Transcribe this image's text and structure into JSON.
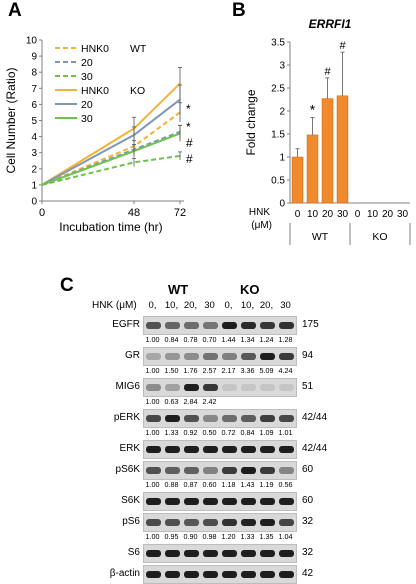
{
  "panels": {
    "a": "A",
    "b": "B",
    "c": "C"
  },
  "panel_a": {
    "chart_data": {
      "type": "line",
      "xlabel": "Incubation time (hr)",
      "ylabel": "Cell Number (Ratio)",
      "x": [
        0,
        48,
        72
      ],
      "xticks": [
        "0",
        "48",
        "72"
      ],
      "yticks": [
        "0",
        "1",
        "2",
        "3",
        "4",
        "5",
        "6",
        "7",
        "8",
        "9",
        "10"
      ],
      "ylim": [
        0,
        10
      ],
      "legend_groups": [
        "WT",
        "KO"
      ],
      "series": [
        {
          "name": "HNK0",
          "group": "WT",
          "color": "#f5b335",
          "dashed": true,
          "values": [
            1,
            3.4,
            5.5
          ]
        },
        {
          "name": "20",
          "group": "WT",
          "color": "#7f96b8",
          "dashed": true,
          "values": [
            1,
            3.2,
            4.3
          ]
        },
        {
          "name": "30",
          "group": "WT",
          "color": "#6cc24a",
          "dashed": true,
          "values": [
            1,
            2.4,
            2.8
          ]
        },
        {
          "name": "HNK0",
          "group": "KO",
          "color": "#f5b335",
          "dashed": false,
          "values": [
            1,
            4.5,
            7.3
          ]
        },
        {
          "name": "20",
          "group": "KO",
          "color": "#7f96b8",
          "dashed": false,
          "values": [
            1,
            4.1,
            6.3
          ]
        },
        {
          "name": "30",
          "group": "KO",
          "color": "#6cc24a",
          "dashed": false,
          "values": [
            1,
            3.1,
            4.2
          ]
        }
      ],
      "annotations": [
        "*",
        "*",
        "#",
        "#"
      ]
    }
  },
  "panel_b": {
    "chart_data": {
      "type": "bar",
      "title": "ERRFI1",
      "ylabel": "Fold change",
      "xlabel": "HNK\n(μM)",
      "xlabel_line1": "HNK",
      "xlabel_line2": "(μM)",
      "categories": [
        "0",
        "10",
        "20",
        "30",
        "0",
        "10",
        "20",
        "30"
      ],
      "groups": [
        "WT",
        "KO"
      ],
      "values": [
        1.0,
        1.48,
        2.27,
        2.33,
        0,
        0,
        0,
        0
      ],
      "errors": [
        0.18,
        0.38,
        0.45,
        0.95,
        0,
        0,
        0,
        0
      ],
      "markers": [
        "",
        "*",
        "#",
        "#",
        "",
        "",
        "",
        ""
      ],
      "yticks": [
        "0",
        "0.5",
        "1",
        "1.5",
        "2",
        "2.5",
        "3",
        "3.5"
      ],
      "ylim": [
        0,
        3.5
      ],
      "bar_color": "#f08a2c"
    }
  },
  "panel_c": {
    "groups": [
      "WT",
      "KO"
    ],
    "hnk_label": "HNK (μM)",
    "doses": [
      "0,",
      "10,",
      "20,",
      "30",
      "0,",
      "10,",
      "20,",
      "30"
    ],
    "rows": [
      {
        "name": "EGFR",
        "kda": "175",
        "vals": [
          "1.00",
          "0.84",
          "0.78",
          "0.70",
          "1.44",
          "1.34",
          "1.24",
          "1.28"
        ]
      },
      {
        "name": "GR",
        "kda": "94",
        "vals": [
          "1.00",
          "1.50",
          "1.76",
          "2.57",
          "2.17",
          "3.36",
          "5.09",
          "4.24"
        ]
      },
      {
        "name": "MIG6",
        "kda": "51",
        "vals": [
          "1.00",
          "0.63",
          "2.84",
          "2.42",
          "",
          "",
          "",
          ""
        ]
      },
      {
        "name": "pERK",
        "kda": "42/44",
        "vals": [
          "1.00",
          "1.33",
          "0.92",
          "0.50",
          "0.72",
          "0.84",
          "1.09",
          "1.01"
        ]
      },
      {
        "name": "ERK",
        "kda": "42/44",
        "vals": []
      },
      {
        "name": "pS6K",
        "kda": "60",
        "vals": [
          "1.00",
          "0.88",
          "0.87",
          "0.60",
          "1.18",
          "1.43",
          "1.19",
          "0.56"
        ]
      },
      {
        "name": "S6K",
        "kda": "60",
        "vals": []
      },
      {
        "name": "pS6",
        "kda": "32",
        "vals": [
          "1.00",
          "0.95",
          "0.90",
          "0.98",
          "1.20",
          "1.33",
          "1.35",
          "1.04"
        ]
      },
      {
        "name": "S6",
        "kda": "32",
        "vals": []
      },
      {
        "name": "β-actin",
        "kda": "42",
        "vals": []
      }
    ]
  }
}
